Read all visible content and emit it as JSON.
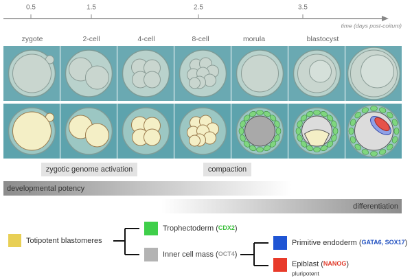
{
  "timeline": {
    "ticks": [
      "0.5",
      "1.5",
      "2.5",
      "3.5"
    ],
    "axis_label": "time (days post-coitum)"
  },
  "stages": [
    "zygote",
    "2-cell",
    "4-cell",
    "8-cell",
    "morula",
    "blastocyst"
  ],
  "events": [
    "zygotic genome activation",
    "compaction"
  ],
  "gradients": [
    "developmental potency",
    "differentiation"
  ],
  "legend": {
    "totipotent": "Totipotent blastomeres",
    "trophectoderm": {
      "label": "Trophectoderm (",
      "marker": "CDX2",
      "close": ")"
    },
    "inner_cell_mass": {
      "label": "Inner cell mass (",
      "marker": "OCT4",
      "close": ")"
    },
    "primitive_endoderm": {
      "label": "Primitive endoderm (",
      "marker": "GATA6, SOX17",
      "close": ")"
    },
    "epiblast": {
      "label": "Epiblast (",
      "marker": "NANOG",
      "close": ")",
      "note": "pluripotent"
    }
  }
}
